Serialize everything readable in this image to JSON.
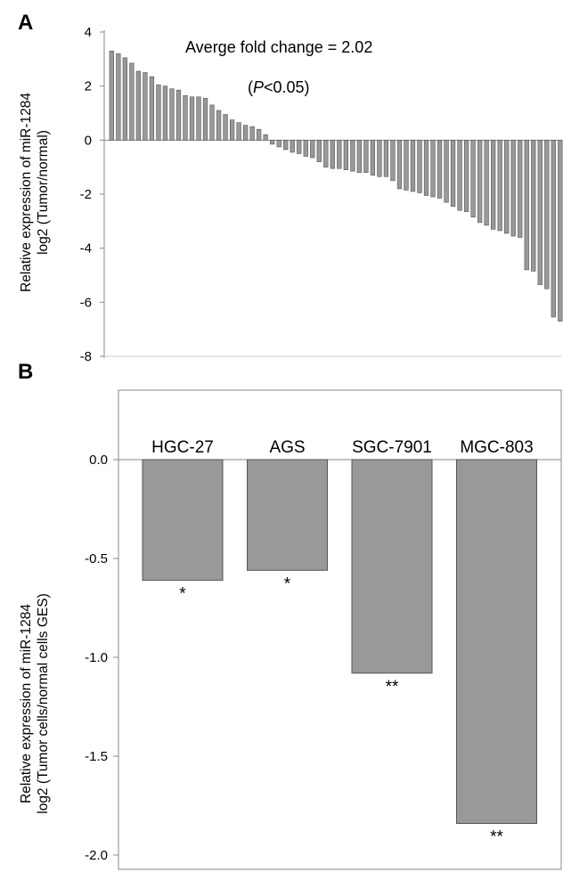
{
  "panels": {
    "a": {
      "letter": "A"
    },
    "b": {
      "letter": "B"
    }
  },
  "colors": {
    "bar_fill": "#999999",
    "bar_stroke": "#555555",
    "axis": "#888888"
  },
  "chart_data": [
    {
      "type": "bar",
      "panel": "A",
      "title": "",
      "ylabel_line1": "Relative expression of miR-1284",
      "ylabel_line2": "log2 (Tumor/normal)",
      "ylim": [
        -8,
        4
      ],
      "yticks": [
        "4",
        "2",
        "0",
        "-2",
        "-4",
        "-6",
        "-8"
      ],
      "annotation": "Averge fold change = 2.02",
      "pvalue": {
        "open": "(",
        "italic": "P",
        "rest": "<0.05)"
      },
      "values": [
        3.3,
        3.2,
        3.05,
        2.85,
        2.55,
        2.5,
        2.35,
        2.05,
        2.0,
        1.9,
        1.85,
        1.65,
        1.6,
        1.6,
        1.55,
        1.3,
        1.1,
        0.95,
        0.75,
        0.65,
        0.55,
        0.5,
        0.4,
        0.2,
        -0.15,
        -0.25,
        -0.35,
        -0.45,
        -0.5,
        -0.6,
        -0.65,
        -0.8,
        -1.0,
        -1.05,
        -1.05,
        -1.1,
        -1.15,
        -1.2,
        -1.2,
        -1.3,
        -1.35,
        -1.35,
        -1.5,
        -1.8,
        -1.85,
        -1.9,
        -1.95,
        -2.05,
        -2.1,
        -2.15,
        -2.3,
        -2.45,
        -2.6,
        -2.65,
        -2.85,
        -3.05,
        -3.15,
        -3.3,
        -3.35,
        -3.45,
        -3.55,
        -3.6,
        -4.8,
        -4.85,
        -5.35,
        -5.5,
        -6.55,
        -6.7
      ]
    },
    {
      "type": "bar",
      "panel": "B",
      "title": "",
      "ylabel_line1": "Relative expression of miR-1284",
      "ylabel_line2": "log2 (Tumor cells/normal cells GES)",
      "ylim": [
        -2.0,
        0.0
      ],
      "yticks": [
        "0.0",
        "-0.5",
        "-1.0",
        "-1.5",
        "-2.0"
      ],
      "categories": [
        "HGC-27",
        "AGS",
        "SGC-7901",
        "MGC-803"
      ],
      "values": [
        -0.61,
        -0.56,
        -1.08,
        -1.84
      ],
      "significance": [
        "*",
        "*",
        "**",
        "**"
      ]
    }
  ]
}
